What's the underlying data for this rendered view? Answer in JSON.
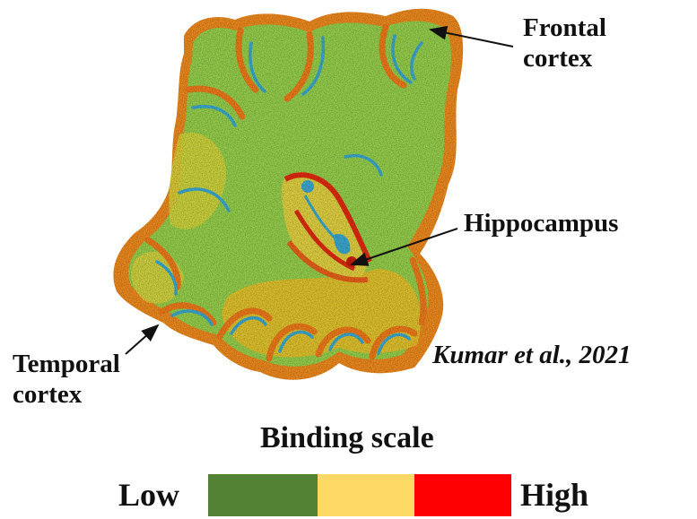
{
  "labels": {
    "frontal": "Frontal\ncortex",
    "hippocampus": "Hippocampus",
    "temporal": "Temporal\ncortex"
  },
  "citation": "Kumar et al., 2021",
  "scale": {
    "title": "Binding scale",
    "low_label": "Low",
    "high_label": "High",
    "segments": [
      {
        "color": "#548235"
      },
      {
        "color": "#ffd966"
      },
      {
        "color": "#ff0000"
      }
    ]
  },
  "colors": {
    "tissue_base": "#95cf4c",
    "tissue_high": "#f0a020",
    "tissue_peak": "#e63312",
    "tissue_low": "#3aa8d0"
  }
}
